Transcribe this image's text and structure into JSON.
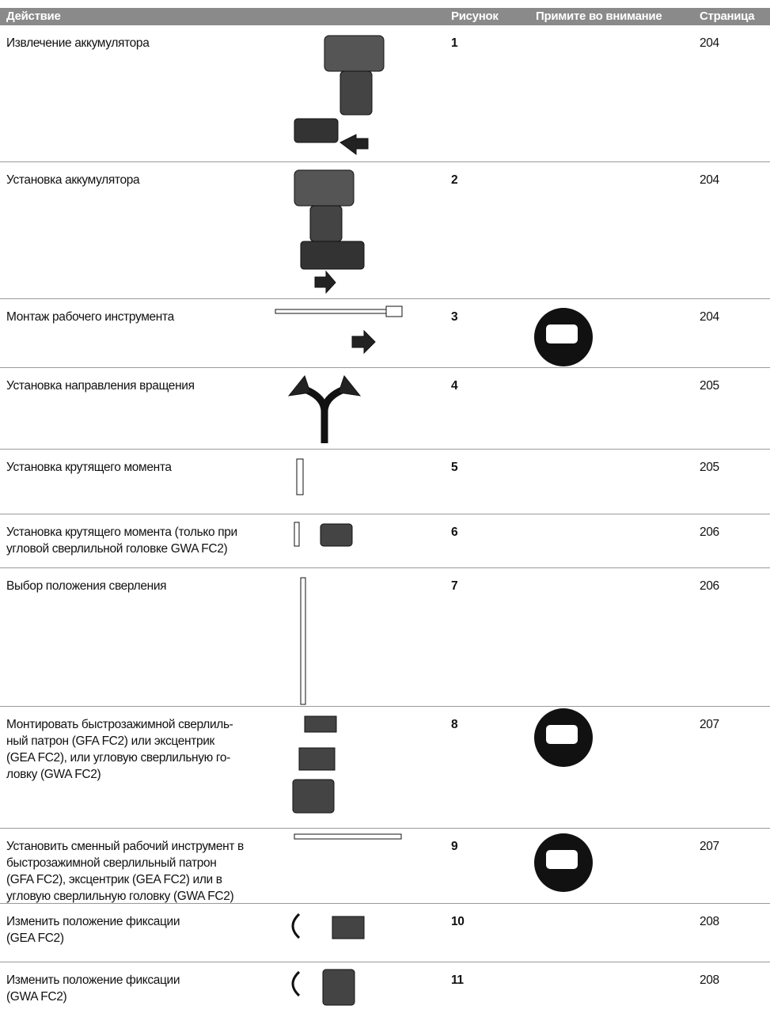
{
  "table": {
    "header": [
      "Действие",
      "Рисунок",
      "Примите во внимание",
      "Страница"
    ],
    "rows": [
      {
        "action": [
          "Извлечение аккумулятора"
        ],
        "figure": "1",
        "page": "204"
      },
      {
        "action": [
          "Установка аккумулятора"
        ],
        "figure": "2",
        "page": "204"
      },
      {
        "action": [
          "Монтаж рабочего инструмента"
        ],
        "figure": "3",
        "page": "204"
      },
      {
        "action": [
          "Установка направления вращения"
        ],
        "figure": "4",
        "page": "205"
      },
      {
        "action": [
          "Установка крутящего момента"
        ],
        "figure": "5",
        "page": "205"
      },
      {
        "action": [
          "Установка крутящего момента (только при",
          "угловой сверлильной головке GWA FC2)"
        ],
        "figure": "6",
        "page": "206"
      },
      {
        "action": [
          "Выбор положения сверления"
        ],
        "figure": "7",
        "page": "206"
      },
      {
        "action": [
          "Монтировать быстрозажимной сверлиль-",
          "ный патрон (GFA FC2) или эксцентрик",
          "(GEA FC2), или угловую сверлильную го-",
          "ловку (GWA FC2)"
        ],
        "figure": "8",
        "page": "207"
      },
      {
        "action": [
          "Установить сменный рабочий инструмент в",
          "быстрозажимной сверлильный патрон",
          "(GFA FC2), эксцентрик (GEA FC2) или в",
          "угловую сверлильную головку (GWA FC2)"
        ],
        "figure": "9",
        "page": "207"
      },
      {
        "action": [
          "Изменить положение фиксации",
          "(GEA FC2)"
        ],
        "figure": "10",
        "page": "208"
      },
      {
        "action": [
          "Изменить положение фиксации",
          "(GWA FC2)"
        ],
        "figure": "11",
        "page": "208"
      }
    ]
  }
}
